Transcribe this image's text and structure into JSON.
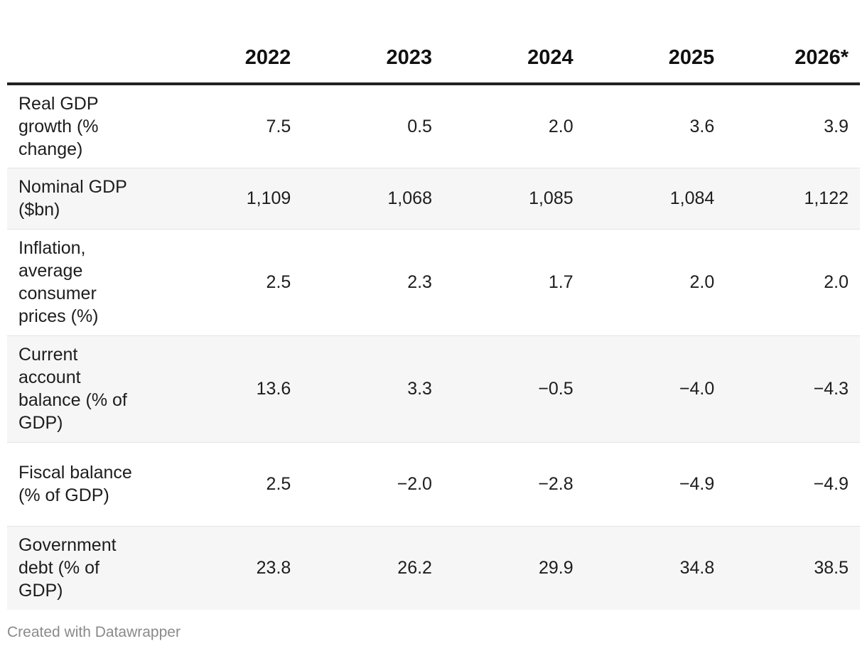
{
  "chart_data": {
    "type": "table",
    "columns": [
      "",
      "2022",
      "2023",
      "2024",
      "2025",
      "2026*"
    ],
    "rows": [
      {
        "label": "Real GDP growth (% change)",
        "values": [
          "7.5",
          "0.5",
          "2.0",
          "3.6",
          "3.9"
        ]
      },
      {
        "label": "Nominal GDP ($bn)",
        "values": [
          "1,109",
          "1,068",
          "1,085",
          "1,084",
          "1,122"
        ]
      },
      {
        "label": "Inflation, average consumer prices (%)",
        "values": [
          "2.5",
          "2.3",
          "1.7",
          "2.0",
          "2.0"
        ]
      },
      {
        "label": "Current account balance (% of GDP)",
        "values": [
          "13.6",
          "3.3",
          "−0.5",
          "−4.0",
          "−4.3"
        ]
      },
      {
        "label": "Fiscal balance (% of GDP)",
        "values": [
          "2.5",
          "−2.0",
          "−2.8",
          "−4.9",
          "−4.9"
        ]
      },
      {
        "label": "Government debt (% of GDP)",
        "values": [
          "23.8",
          "26.2",
          "29.9",
          "34.8",
          "38.5"
        ]
      }
    ]
  },
  "footer": {
    "credit": "Created with Datawrapper"
  }
}
